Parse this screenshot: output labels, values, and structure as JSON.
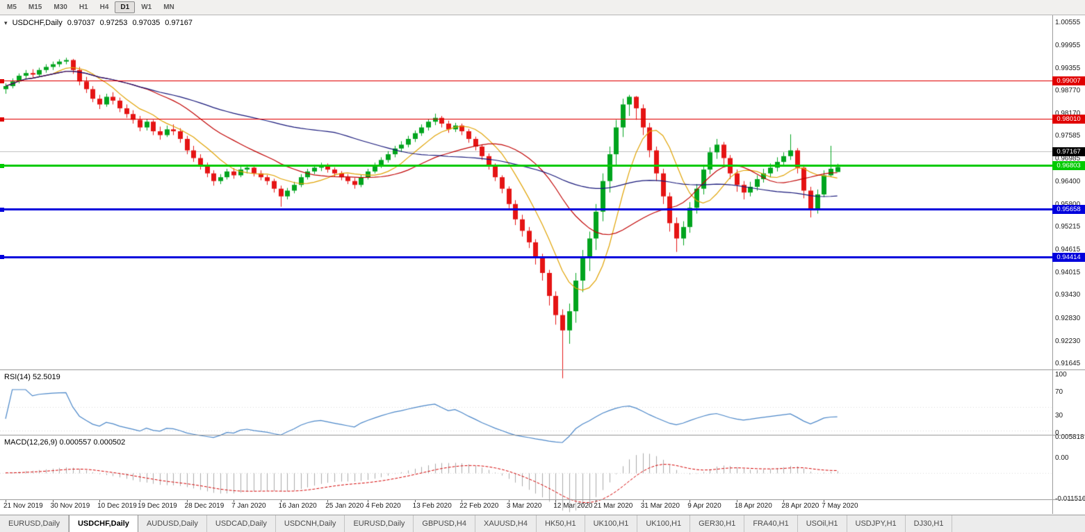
{
  "icons": {
    "chart_dropdown": "▾"
  },
  "toolbar": {
    "timeframes": [
      {
        "label": "M5",
        "active": false
      },
      {
        "label": "M15",
        "active": false
      },
      {
        "label": "M30",
        "active": false
      },
      {
        "label": "H1",
        "active": false
      },
      {
        "label": "H4",
        "active": false
      },
      {
        "label": "D1",
        "active": true
      },
      {
        "label": "W1",
        "active": false
      },
      {
        "label": "MN",
        "active": false
      }
    ]
  },
  "chart_header": {
    "symbol": "USDCHF,Daily",
    "open": "0.97037",
    "high": "0.97253",
    "low": "0.97035",
    "close": "0.97167"
  },
  "colors": {
    "background": "#ffffff",
    "up": "#00a41e",
    "down": "#e51414",
    "ma_fast": "#e0a200",
    "ma_mid": "#c00000",
    "ma_slow": "#141478",
    "rsi_line": "#4a86c8",
    "macd_hist": "#aaaaaa",
    "macd_signal": "#d40000",
    "axis_text": "#1a1a1a",
    "current_price_line": "#c4c4c4",
    "current_price_tag": "#000000"
  },
  "tabs": [
    {
      "label": "EURUSD,Daily",
      "active": false
    },
    {
      "label": "USDCHF,Daily",
      "active": true
    },
    {
      "label": "AUDUSD,Daily",
      "active": false
    },
    {
      "label": "USDCAD,Daily",
      "active": false
    },
    {
      "label": "USDCNH,Daily",
      "active": false
    },
    {
      "label": "EURUSD,Daily",
      "active": false
    },
    {
      "label": "GBPUSD,H4",
      "active": false
    },
    {
      "label": "XAUUSD,H4",
      "active": false
    },
    {
      "label": "HK50,H1",
      "active": false
    },
    {
      "label": "UK100,H1",
      "active": false
    },
    {
      "label": "UK100,H1",
      "active": false
    },
    {
      "label": "GER30,H1",
      "active": false
    },
    {
      "label": "FRA40,H1",
      "active": false
    },
    {
      "label": "USOil,H1",
      "active": false
    },
    {
      "label": "USDJPY,H1",
      "active": false
    },
    {
      "label": "DJ30,H1",
      "active": false
    }
  ],
  "chart_data": {
    "type": "candlestick",
    "symbol": "USDCHF",
    "timeframe": "Daily",
    "price_scale": {
      "max": 1.0073,
      "min": 0.9148,
      "labels": [
        "1.00555",
        "0.99955",
        "0.99355",
        "0.98770",
        "0.98170",
        "0.97585",
        "0.96985",
        "0.96400",
        "0.95800",
        "0.95215",
        "0.94615",
        "0.94015",
        "0.93430",
        "0.92830",
        "0.92230",
        "0.91645"
      ]
    },
    "current_price": {
      "value": 0.97167,
      "label": "0.97167"
    },
    "horizontal_lines": [
      {
        "price": 0.99007,
        "label": "0.99007",
        "color": "#e00000",
        "width": 1
      },
      {
        "price": 0.9801,
        "label": "0.98010",
        "color": "#e00000",
        "width": 1
      },
      {
        "price": 0.96803,
        "label": "0.96803",
        "color": "#00ca00",
        "width": 3
      },
      {
        "price": 0.95658,
        "label": "0.95658",
        "color": "#0000dc",
        "width": 3
      },
      {
        "price": 0.94414,
        "label": "0.94414",
        "color": "#0000dc",
        "width": 3
      }
    ],
    "date_labels": [
      {
        "index": 0,
        "label": "21 Nov 2019"
      },
      {
        "index": 7,
        "label": "30 Nov 2019"
      },
      {
        "index": 14,
        "label": "10 Dec 2019"
      },
      {
        "index": 20,
        "label": "19 Dec 2019"
      },
      {
        "index": 27,
        "label": "28 Dec 2019"
      },
      {
        "index": 34,
        "label": "7 Jan 2020"
      },
      {
        "index": 41,
        "label": "16 Jan 2020"
      },
      {
        "index": 48,
        "label": "25 Jan 2020"
      },
      {
        "index": 54,
        "label": "4 Feb 2020"
      },
      {
        "index": 61,
        "label": "13 Feb 2020"
      },
      {
        "index": 68,
        "label": "22 Feb 2020"
      },
      {
        "index": 75,
        "label": "3 Mar 2020"
      },
      {
        "index": 82,
        "label": "12 Mar 2020"
      },
      {
        "index": 88,
        "label": "21 Mar 2020"
      },
      {
        "index": 95,
        "label": "31 Mar 2020"
      },
      {
        "index": 102,
        "label": "9 Apr 2020"
      },
      {
        "index": 109,
        "label": "18 Apr 2020"
      },
      {
        "index": 116,
        "label": "28 Apr 2020"
      },
      {
        "index": 122,
        "label": "7 May 2020"
      }
    ],
    "indicators": {
      "moving_averages": [
        {
          "name": "fast",
          "period": 8,
          "color": "#e0a200"
        },
        {
          "name": "medium",
          "period": 20,
          "color": "#c00000"
        },
        {
          "name": "slow",
          "period": 50,
          "color": "#141478"
        }
      ],
      "rsi": {
        "header": "RSI(14) 52.5019",
        "period": 14,
        "value": 52.5019,
        "color": "#4a86c8",
        "axis_labels": [
          "100",
          "70",
          "30",
          "0"
        ],
        "levels": [
          70,
          30
        ],
        "scale": {
          "max": 100,
          "min": 0
        }
      },
      "macd": {
        "header": "MACD(12,26,9) 0.000557 0.000502",
        "fast": 12,
        "slow": 26,
        "signal": 9,
        "macd_value": 0.000557,
        "signal_value": 0.000502,
        "axis_labels": [
          "0.005818",
          "0.00",
          "-0.011516"
        ],
        "scale": {
          "max": 0.00625,
          "min": -0.0118
        },
        "histogram_color": "#aaaaaa",
        "signal_color": "#d40000"
      }
    },
    "candles": [
      [
        0.992,
        0.9935,
        0.9908,
        0.9928
      ],
      [
        0.9928,
        0.9948,
        0.9922,
        0.994
      ],
      [
        0.994,
        0.9961,
        0.9935,
        0.9955
      ],
      [
        0.9955,
        0.997,
        0.9948,
        0.9962
      ],
      [
        0.9962,
        0.9972,
        0.995,
        0.9958
      ],
      [
        0.9958,
        0.9976,
        0.9952,
        0.997
      ],
      [
        0.997,
        0.9985,
        0.9963,
        0.9978
      ],
      [
        0.9978,
        0.9992,
        0.997,
        0.9985
      ],
      [
        0.9985,
        0.9998,
        0.9978,
        0.9992
      ],
      [
        0.9992,
        1.0002,
        0.9985,
        0.9996
      ],
      [
        0.9996,
        0.9999,
        0.996,
        0.997
      ],
      [
        0.997,
        0.9978,
        0.993,
        0.994
      ],
      [
        0.994,
        0.9952,
        0.991,
        0.992
      ],
      [
        0.992,
        0.9928,
        0.9886,
        0.9895
      ],
      [
        0.9895,
        0.9905,
        0.9868,
        0.988
      ],
      [
        0.988,
        0.9908,
        0.9874,
        0.99
      ],
      [
        0.99,
        0.9912,
        0.988,
        0.989
      ],
      [
        0.989,
        0.9898,
        0.986,
        0.987
      ],
      [
        0.987,
        0.988,
        0.9845,
        0.9855
      ],
      [
        0.9855,
        0.9865,
        0.983,
        0.984
      ],
      [
        0.984,
        0.985,
        0.981,
        0.982
      ],
      [
        0.982,
        0.9842,
        0.9812,
        0.9835
      ],
      [
        0.9835,
        0.984,
        0.98,
        0.981
      ],
      [
        0.981,
        0.9822,
        0.9788,
        0.98
      ],
      [
        0.98,
        0.9825,
        0.9795,
        0.9815
      ],
      [
        0.9815,
        0.9828,
        0.98,
        0.981
      ],
      [
        0.981,
        0.9818,
        0.978,
        0.979
      ],
      [
        0.979,
        0.9798,
        0.975,
        0.976
      ],
      [
        0.976,
        0.9772,
        0.973,
        0.974
      ],
      [
        0.974,
        0.975,
        0.971,
        0.972
      ],
      [
        0.972,
        0.9728,
        0.969,
        0.97
      ],
      [
        0.97,
        0.9708,
        0.9668,
        0.968
      ],
      [
        0.968,
        0.9698,
        0.9672,
        0.969
      ],
      [
        0.969,
        0.9712,
        0.9684,
        0.9705
      ],
      [
        0.9705,
        0.9714,
        0.9686,
        0.9695
      ],
      [
        0.9695,
        0.9718,
        0.969,
        0.971
      ],
      [
        0.971,
        0.9722,
        0.97,
        0.9715
      ],
      [
        0.9715,
        0.972,
        0.9692,
        0.97
      ],
      [
        0.97,
        0.9708,
        0.9682,
        0.969
      ],
      [
        0.969,
        0.9696,
        0.967,
        0.968
      ],
      [
        0.968,
        0.9686,
        0.965,
        0.966
      ],
      [
        0.966,
        0.9668,
        0.9613,
        0.964
      ],
      [
        0.964,
        0.9662,
        0.9632,
        0.9655
      ],
      [
        0.9655,
        0.9678,
        0.9648,
        0.967
      ],
      [
        0.967,
        0.9698,
        0.9664,
        0.969
      ],
      [
        0.969,
        0.9712,
        0.9684,
        0.9705
      ],
      [
        0.9705,
        0.9722,
        0.9698,
        0.9715
      ],
      [
        0.9715,
        0.9728,
        0.9706,
        0.972
      ],
      [
        0.972,
        0.9726,
        0.9702,
        0.971
      ],
      [
        0.971,
        0.9716,
        0.9692,
        0.97
      ],
      [
        0.97,
        0.9706,
        0.9682,
        0.969
      ],
      [
        0.969,
        0.9698,
        0.9672,
        0.968
      ],
      [
        0.968,
        0.9688,
        0.966,
        0.967
      ],
      [
        0.967,
        0.9696,
        0.9664,
        0.969
      ],
      [
        0.969,
        0.9712,
        0.9684,
        0.9705
      ],
      [
        0.9705,
        0.9728,
        0.97,
        0.972
      ],
      [
        0.972,
        0.9742,
        0.9714,
        0.9735
      ],
      [
        0.9735,
        0.9758,
        0.9728,
        0.975
      ],
      [
        0.975,
        0.9772,
        0.9742,
        0.9765
      ],
      [
        0.9765,
        0.9784,
        0.9756,
        0.9775
      ],
      [
        0.9775,
        0.9798,
        0.9768,
        0.979
      ],
      [
        0.979,
        0.9812,
        0.9782,
        0.9805
      ],
      [
        0.9805,
        0.9828,
        0.9798,
        0.982
      ],
      [
        0.982,
        0.9842,
        0.9812,
        0.9835
      ],
      [
        0.9835,
        0.9856,
        0.9826,
        0.9845
      ],
      [
        0.9845,
        0.985,
        0.982,
        0.983
      ],
      [
        0.983,
        0.9838,
        0.9806,
        0.9815
      ],
      [
        0.9815,
        0.9832,
        0.9808,
        0.9825
      ],
      [
        0.9825,
        0.983,
        0.98,
        0.981
      ],
      [
        0.981,
        0.9816,
        0.978,
        0.979
      ],
      [
        0.979,
        0.9796,
        0.976,
        0.977
      ],
      [
        0.977,
        0.9776,
        0.9735,
        0.9745
      ],
      [
        0.9745,
        0.9752,
        0.971,
        0.972
      ],
      [
        0.972,
        0.9726,
        0.968,
        0.969
      ],
      [
        0.969,
        0.9695,
        0.9648,
        0.966
      ],
      [
        0.966,
        0.9666,
        0.9608,
        0.962
      ],
      [
        0.962,
        0.963,
        0.9565,
        0.958
      ],
      [
        0.958,
        0.9592,
        0.9535,
        0.955
      ],
      [
        0.955,
        0.956,
        0.9505,
        0.952
      ],
      [
        0.952,
        0.9528,
        0.9462,
        0.948
      ],
      [
        0.948,
        0.949,
        0.942,
        0.944
      ],
      [
        0.944,
        0.9448,
        0.9355,
        0.938
      ],
      [
        0.938,
        0.9392,
        0.9305,
        0.933
      ],
      [
        0.933,
        0.9345,
        0.9165,
        0.929
      ],
      [
        0.929,
        0.936,
        0.9255,
        0.934
      ],
      [
        0.934,
        0.944,
        0.931,
        0.942
      ],
      [
        0.942,
        0.95,
        0.939,
        0.948
      ],
      [
        0.948,
        0.9548,
        0.9445,
        0.953
      ],
      [
        0.953,
        0.962,
        0.95,
        0.96
      ],
      [
        0.96,
        0.97,
        0.9575,
        0.968
      ],
      [
        0.968,
        0.977,
        0.965,
        0.975
      ],
      [
        0.975,
        0.984,
        0.972,
        0.982
      ],
      [
        0.982,
        0.9895,
        0.9795,
        0.988
      ],
      [
        0.988,
        0.9905,
        0.985,
        0.99
      ],
      [
        0.99,
        0.9902,
        0.984,
        0.987
      ],
      [
        0.987,
        0.988,
        0.98,
        0.982
      ],
      [
        0.982,
        0.9832,
        0.9742,
        0.976
      ],
      [
        0.976,
        0.977,
        0.968,
        0.97
      ],
      [
        0.97,
        0.9712,
        0.962,
        0.964
      ],
      [
        0.964,
        0.965,
        0.9548,
        0.957
      ],
      [
        0.957,
        0.9585,
        0.9495,
        0.953
      ],
      [
        0.953,
        0.9575,
        0.9512,
        0.956
      ],
      [
        0.956,
        0.9625,
        0.9545,
        0.961
      ],
      [
        0.961,
        0.9672,
        0.9595,
        0.966
      ],
      [
        0.966,
        0.9722,
        0.9645,
        0.971
      ],
      [
        0.971,
        0.9768,
        0.9698,
        0.9755
      ],
      [
        0.9755,
        0.979,
        0.9738,
        0.9775
      ],
      [
        0.9775,
        0.9782,
        0.9722,
        0.974
      ],
      [
        0.974,
        0.9748,
        0.9685,
        0.97
      ],
      [
        0.97,
        0.971,
        0.9652,
        0.967
      ],
      [
        0.967,
        0.968,
        0.9632,
        0.965
      ],
      [
        0.965,
        0.9678,
        0.964,
        0.9665
      ],
      [
        0.9665,
        0.9695,
        0.9655,
        0.9685
      ],
      [
        0.9685,
        0.9712,
        0.9676,
        0.97
      ],
      [
        0.97,
        0.9726,
        0.969,
        0.9715
      ],
      [
        0.9715,
        0.9742,
        0.9705,
        0.973
      ],
      [
        0.973,
        0.9755,
        0.972,
        0.9745
      ],
      [
        0.9745,
        0.9802,
        0.9735,
        0.976
      ],
      [
        0.976,
        0.9766,
        0.97,
        0.9715
      ],
      [
        0.9715,
        0.9722,
        0.9635,
        0.9655
      ],
      [
        0.9655,
        0.9665,
        0.9585,
        0.9605
      ],
      [
        0.9605,
        0.9658,
        0.9595,
        0.9645
      ],
      [
        0.9645,
        0.9708,
        0.9638,
        0.9695
      ],
      [
        0.9695,
        0.9772,
        0.969,
        0.9712
      ],
      [
        0.97037,
        0.97253,
        0.97035,
        0.97167
      ]
    ]
  }
}
